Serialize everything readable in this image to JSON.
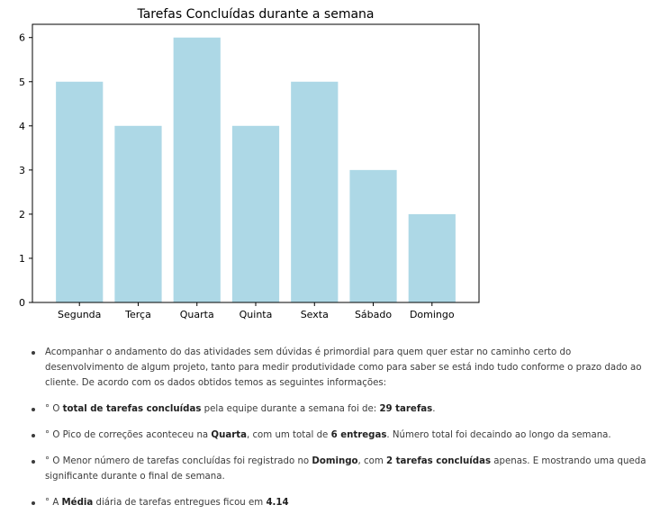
{
  "chart_data": {
    "type": "bar",
    "title": "Tarefas Concluídas durante a semana",
    "categories": [
      "Segunda",
      "Terça",
      "Quarta",
      "Quinta",
      "Sexta",
      "Sábado",
      "Domingo"
    ],
    "values": [
      5,
      4,
      6,
      4,
      5,
      3,
      2
    ],
    "ylim": [
      0,
      6.3
    ],
    "yticks": [
      0,
      1,
      2,
      3,
      4,
      5,
      6
    ],
    "bar_color": "#add8e6",
    "grid": false
  },
  "notes": [
    {
      "intro": "Acompanhar o andamento do das atividades sem dúvidas é primordial para quem quer estar no caminho certo do desenvolvimento de algum projeto, tanto para medir produtividade como para saber se está indo tudo conforme o prazo dado ao cliente. De acordo com os dados obtidos temos as seguintes informações:"
    },
    {
      "prefix": "° O ",
      "bold1": "total de tarefas concluídas",
      "mid": " pela equipe durante a semana foi de: ",
      "bold2": "29 tarefas",
      "suffix": "."
    },
    {
      "prefix": "° O Pico de correções aconteceu na ",
      "bold1": "Quarta",
      "mid": ", com um total de ",
      "bold2": "6 entregas",
      "suffix": ". Número total foi decaindo ao longo da semana."
    },
    {
      "prefix": "° O Menor número de tarefas concluídas foi registrado no ",
      "bold1": "Domingo",
      "mid": ", com ",
      "bold2": "2 tarefas concluídas",
      "suffix": " apenas. E mostrando uma queda significante durante o final de semana."
    },
    {
      "prefix": "° A ",
      "bold1": "Média",
      "mid": " diária de tarefas entregues ficou em ",
      "bold2": "4.14",
      "suffix": ""
    }
  ]
}
